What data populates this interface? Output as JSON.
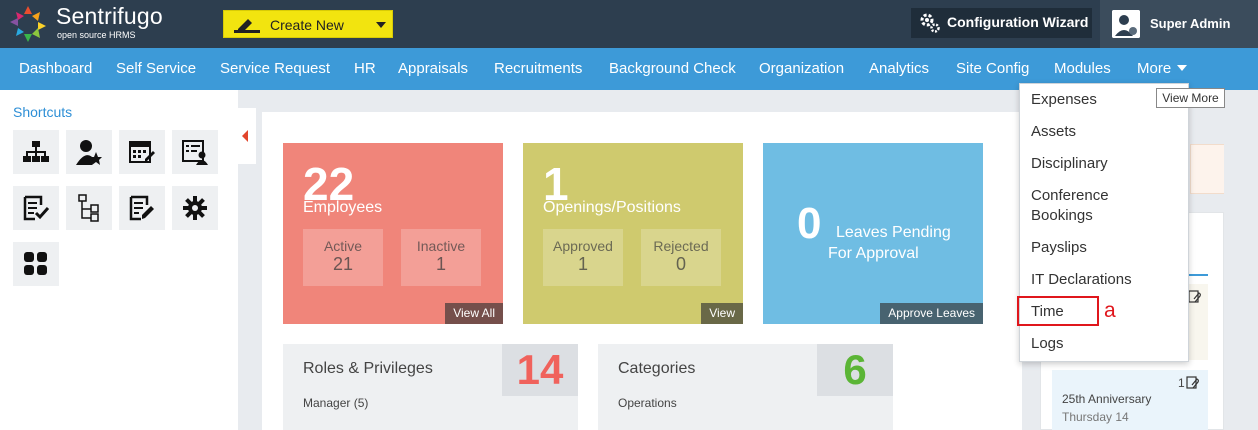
{
  "header": {
    "brand_name": "Sentrifugo",
    "brand_sub": "open source HRMS",
    "create_label": "Create New",
    "wizard_label": "Configuration Wizard",
    "user_name": "Super Admin"
  },
  "nav": {
    "items": [
      "Dashboard",
      "Self Service",
      "Service Request",
      "HR",
      "Appraisals",
      "Recruitments",
      "Background Check",
      "Organization",
      "Analytics",
      "Site Config",
      "Modules",
      "More"
    ]
  },
  "sidebar": {
    "title": "Shortcuts",
    "icons": [
      "org-chart-icon",
      "user-star-icon",
      "calendar-edit-icon",
      "id-card-icon",
      "checklist-icon",
      "tree-doc-icon",
      "doc-edit-icon",
      "gear-icon",
      "grid-apps-icon"
    ]
  },
  "tiles": [
    {
      "number": "22",
      "title": "Employees",
      "sub": [
        {
          "label": "Active",
          "value": "21"
        },
        {
          "label": "Inactive",
          "value": "1"
        }
      ],
      "footer": "View All",
      "color": "#f0857a"
    },
    {
      "number": "1",
      "title": "Openings/Positions",
      "sub": [
        {
          "label": "Approved",
          "value": "1"
        },
        {
          "label": "Rejected",
          "value": "0"
        }
      ],
      "footer": "View",
      "color": "#cfca6e"
    },
    {
      "number": "0",
      "title_line1": "Leaves Pending",
      "title_line2": "For Approval",
      "footer": "Approve Leaves",
      "color": "#6fbde3"
    }
  ],
  "cards": [
    {
      "title": "Roles & Privileges",
      "count": "14",
      "sub": "Manager (5)",
      "count_color": "#f0625c"
    },
    {
      "title": "Categories",
      "count": "6",
      "sub": "Operations",
      "count_color": "#5bb536"
    }
  ],
  "right_column": {
    "count": "1",
    "event_title": "25th Anniversary",
    "event_sub": "Thursday 14"
  },
  "more_menu": {
    "items": [
      "Expenses",
      "Assets",
      "Disciplinary",
      "Conference",
      "Bookings",
      "Payslips",
      "IT Declarations",
      "Time",
      "Logs"
    ]
  },
  "tooltip": "View More",
  "annotation": "a"
}
